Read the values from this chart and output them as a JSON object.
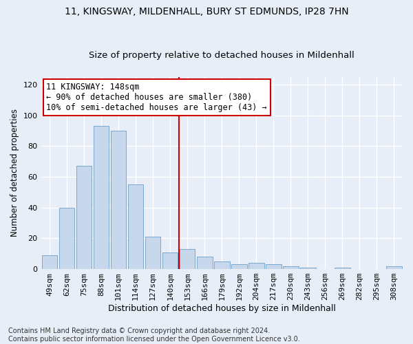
{
  "title": "11, KINGSWAY, MILDENHALL, BURY ST EDMUNDS, IP28 7HN",
  "subtitle": "Size of property relative to detached houses in Mildenhall",
  "xlabel": "Distribution of detached houses by size in Mildenhall",
  "ylabel": "Number of detached properties",
  "bar_color": "#c8d8ec",
  "bar_edge_color": "#7aa8cc",
  "background_color": "#e8eef8",
  "grid_color": "#ffffff",
  "categories": [
    "49sqm",
    "62sqm",
    "75sqm",
    "88sqm",
    "101sqm",
    "114sqm",
    "127sqm",
    "140sqm",
    "153sqm",
    "166sqm",
    "179sqm",
    "192sqm",
    "204sqm",
    "217sqm",
    "230sqm",
    "243sqm",
    "256sqm",
    "269sqm",
    "282sqm",
    "295sqm",
    "308sqm"
  ],
  "values": [
    9,
    40,
    67,
    93,
    90,
    55,
    21,
    11,
    13,
    8,
    5,
    3,
    4,
    3,
    2,
    1,
    0,
    1,
    0,
    0,
    2
  ],
  "ylim": [
    0,
    125
  ],
  "yticks": [
    0,
    20,
    40,
    60,
    80,
    100,
    120
  ],
  "vline_x": 7.5,
  "vline_color": "#cc0000",
  "annotation_text": "11 KINGSWAY: 148sqm\n← 90% of detached houses are smaller (380)\n10% of semi-detached houses are larger (43) →",
  "annotation_box_color": "#ffffff",
  "annotation_box_edge": "#cc0000",
  "footer": "Contains HM Land Registry data © Crown copyright and database right 2024.\nContains public sector information licensed under the Open Government Licence v3.0.",
  "title_fontsize": 10,
  "subtitle_fontsize": 9.5,
  "xlabel_fontsize": 9,
  "ylabel_fontsize": 8.5,
  "tick_fontsize": 8,
  "annotation_fontsize": 8.5,
  "footer_fontsize": 7
}
